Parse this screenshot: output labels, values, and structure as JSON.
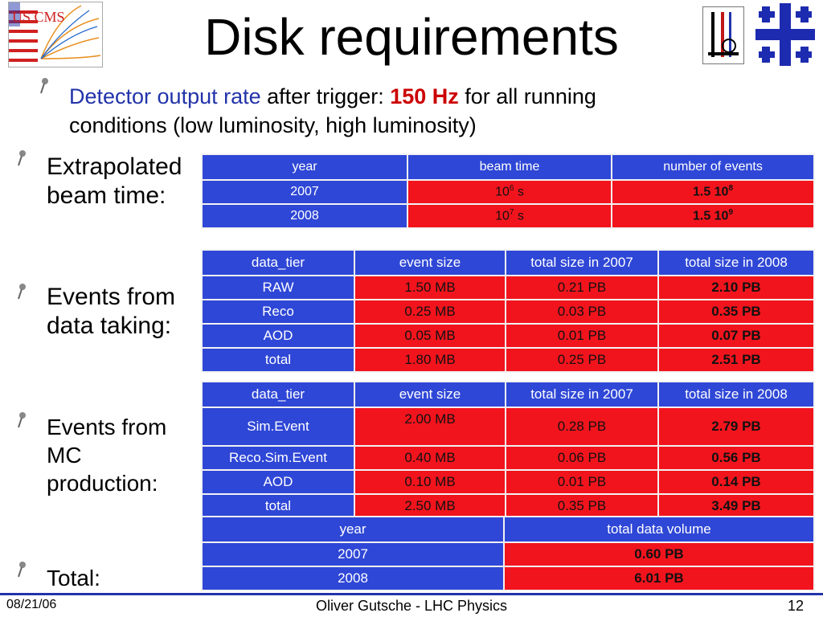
{
  "title": "Disk requirements",
  "logos": {
    "left": "US CMS"
  },
  "bullets": {
    "lead": {
      "part1": "Detector output rate",
      "part2": " after trigger: ",
      "part3": "150 Hz",
      "part4": " for all running",
      "line2": "conditions (low luminosity, high luminosity)"
    },
    "beam": {
      "line1": "Extrapolated",
      "line2": "beam time:"
    },
    "data": {
      "line1": "Events from",
      "line2": "data taking:"
    },
    "mc": {
      "line1": "Events from",
      "line2": "MC",
      "line3": "production:"
    },
    "total": "Total:"
  },
  "beam_table": {
    "headers": [
      "year",
      "beam time",
      "number of events"
    ],
    "rows": [
      {
        "year": "2007",
        "beam": "10",
        "beam_exp": "6",
        "beam_unit": " s",
        "events": "1.5 10",
        "events_exp": "8"
      },
      {
        "year": "2008",
        "beam": "10",
        "beam_exp": "7",
        "beam_unit": " s",
        "events": "1.5 10",
        "events_exp": "9"
      }
    ]
  },
  "data_table": {
    "headers": [
      "data_tier",
      "event size",
      "total size in 2007",
      "total size in 2008"
    ],
    "rows": [
      [
        "RAW",
        "1.50 MB",
        "0.21 PB",
        "2.10 PB"
      ],
      [
        "Reco",
        "0.25 MB",
        "0.03 PB",
        "0.35 PB"
      ],
      [
        "AOD",
        "0.05 MB",
        "0.01 PB",
        "0.07 PB"
      ],
      [
        "total",
        "1.80 MB",
        "0.25 PB",
        "2.51 PB"
      ]
    ]
  },
  "mc_table": {
    "headers": [
      "data_tier",
      "event size",
      "total size in 2007",
      "total size in 2008"
    ],
    "rows": [
      [
        "Sim.Event",
        "2.00 MB",
        "0.28 PB",
        "2.79 PB"
      ],
      [
        "Reco.Sim.Event",
        "0.40 MB",
        "0.06 PB",
        "0.56 PB"
      ],
      [
        "AOD",
        "0.10 MB",
        "0.01 PB",
        "0.14 PB"
      ],
      [
        "total",
        "2.50 MB",
        "0.35 PB",
        "3.49 PB"
      ]
    ]
  },
  "total_table": {
    "headers": [
      "year",
      "total data volume"
    ],
    "rows": [
      [
        "2007",
        "0.60 PB"
      ],
      [
        "2008",
        "6.01 PB"
      ]
    ]
  },
  "footer": {
    "date": "08/21/06",
    "center": "Oliver Gutsche - LHC Physics",
    "page": "12"
  },
  "colors": {
    "blue": "#2f47d6",
    "red": "#f2141d",
    "accent": "#2233aa"
  }
}
